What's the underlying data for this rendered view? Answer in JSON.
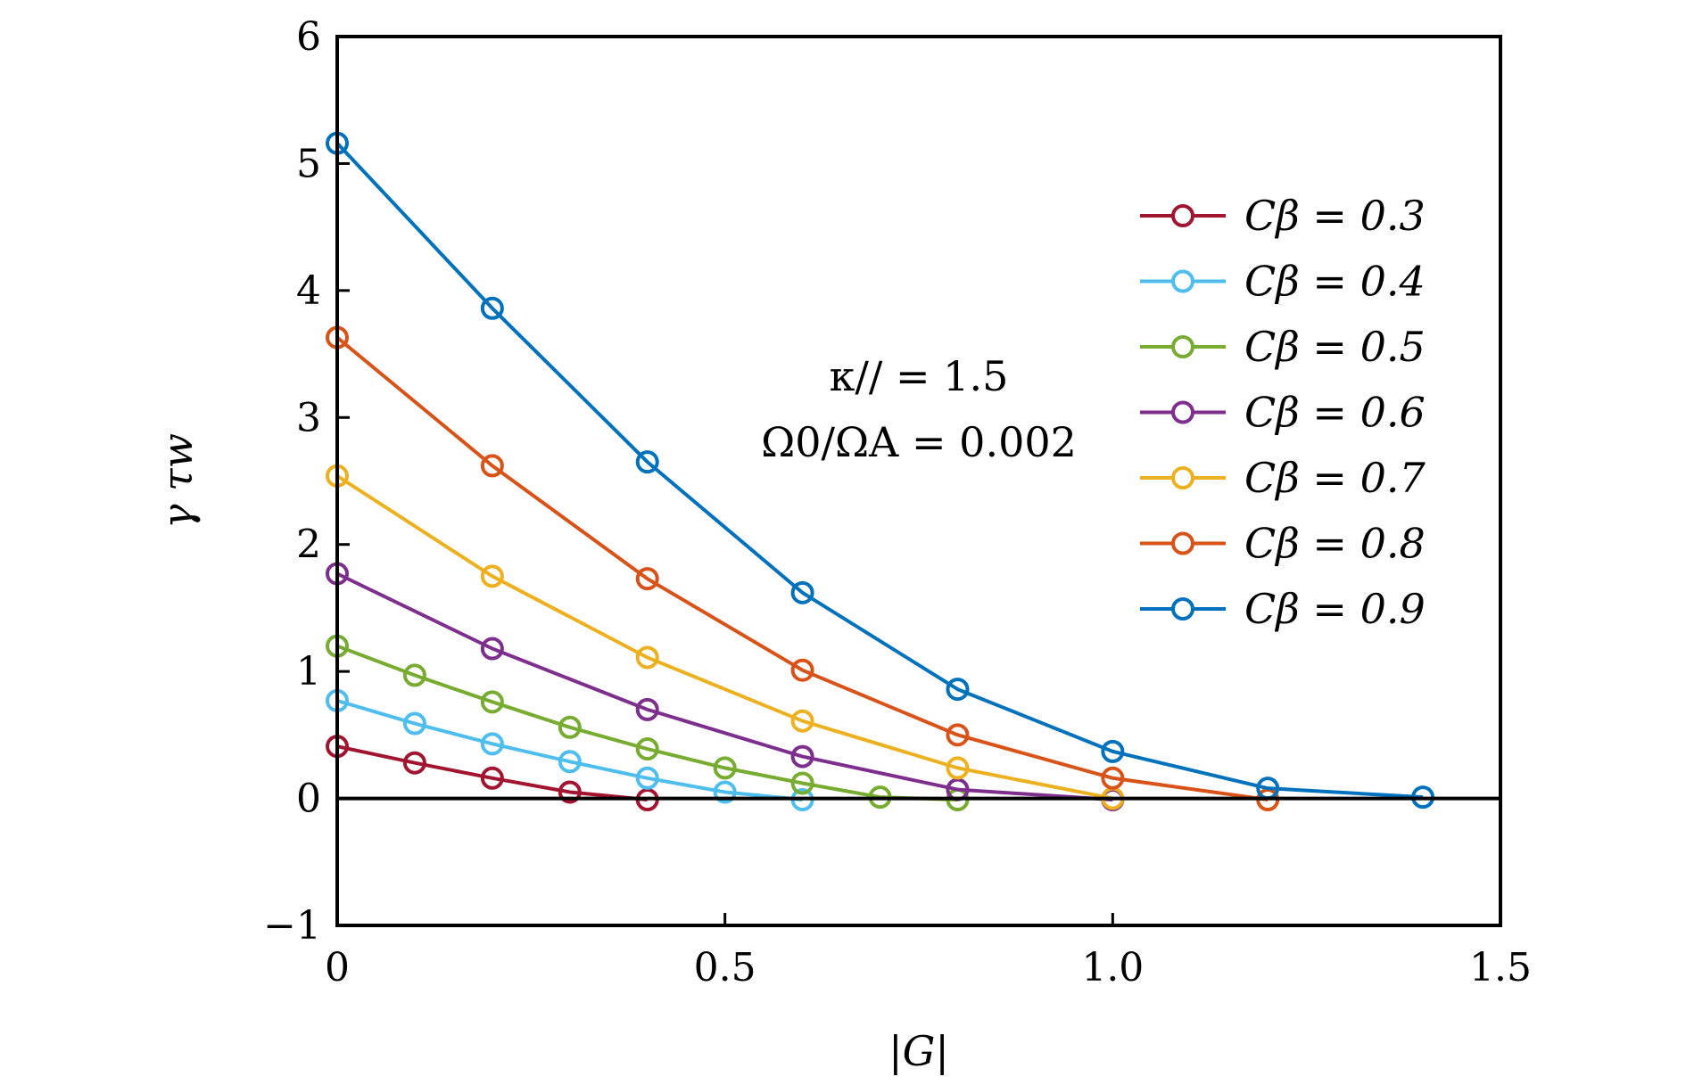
{
  "chart_data": {
    "type": "line",
    "title": "",
    "xlabel": "|G|",
    "ylabel": "γ τw",
    "xlim": [
      0,
      1.5
    ],
    "ylim": [
      -1,
      6
    ],
    "xticks": [
      0,
      0.5,
      1.0,
      1.5
    ],
    "xtick_labels": [
      "0",
      "0.5",
      "1.0",
      "1.5"
    ],
    "yticks": [
      -1,
      0,
      1,
      2,
      3,
      4,
      5,
      6
    ],
    "ytick_labels": [
      "−1",
      "0",
      "1",
      "2",
      "3",
      "4",
      "5",
      "6"
    ],
    "grid": false,
    "legend_position": "upper-right",
    "annotations": [
      "κ// = 1.5",
      "Ω0/ΩA = 0.002"
    ],
    "series": [
      {
        "name": "Cβ = 0.3",
        "color": "#A2142F",
        "x": [
          0,
          0.1,
          0.2,
          0.3,
          0.4
        ],
        "y": [
          0.41,
          0.28,
          0.16,
          0.05,
          -0.01
        ]
      },
      {
        "name": "Cβ = 0.4",
        "color": "#4DBEEE",
        "x": [
          0,
          0.1,
          0.2,
          0.3,
          0.4,
          0.5,
          0.6
        ],
        "y": [
          0.77,
          0.59,
          0.43,
          0.29,
          0.16,
          0.05,
          -0.01
        ]
      },
      {
        "name": "Cβ = 0.5",
        "color": "#77AC30",
        "x": [
          0,
          0.1,
          0.2,
          0.3,
          0.4,
          0.5,
          0.6,
          0.7,
          0.8
        ],
        "y": [
          1.2,
          0.97,
          0.76,
          0.56,
          0.39,
          0.24,
          0.12,
          0.01,
          -0.01
        ]
      },
      {
        "name": "Cβ = 0.6",
        "color": "#7E2F8E",
        "x": [
          0,
          0.2,
          0.4,
          0.6,
          0.8,
          1.0
        ],
        "y": [
          1.77,
          1.18,
          0.7,
          0.33,
          0.07,
          -0.01
        ]
      },
      {
        "name": "Cβ = 0.7",
        "color": "#EDB120",
        "x": [
          0,
          0.2,
          0.4,
          0.6,
          0.8,
          1.0
        ],
        "y": [
          2.54,
          1.75,
          1.11,
          0.61,
          0.24,
          0.0
        ]
      },
      {
        "name": "Cβ = 0.8",
        "color": "#D95319",
        "x": [
          0,
          0.2,
          0.4,
          0.6,
          0.8,
          1.0,
          1.2
        ],
        "y": [
          3.63,
          2.62,
          1.73,
          1.01,
          0.5,
          0.16,
          -0.01
        ]
      },
      {
        "name": "Cβ = 0.9",
        "color": "#0072BD",
        "x": [
          0,
          0.2,
          0.4,
          0.6,
          0.8,
          1.0,
          1.2,
          1.4
        ],
        "y": [
          5.16,
          3.86,
          2.65,
          1.62,
          0.86,
          0.37,
          0.08,
          0.01
        ]
      }
    ]
  }
}
